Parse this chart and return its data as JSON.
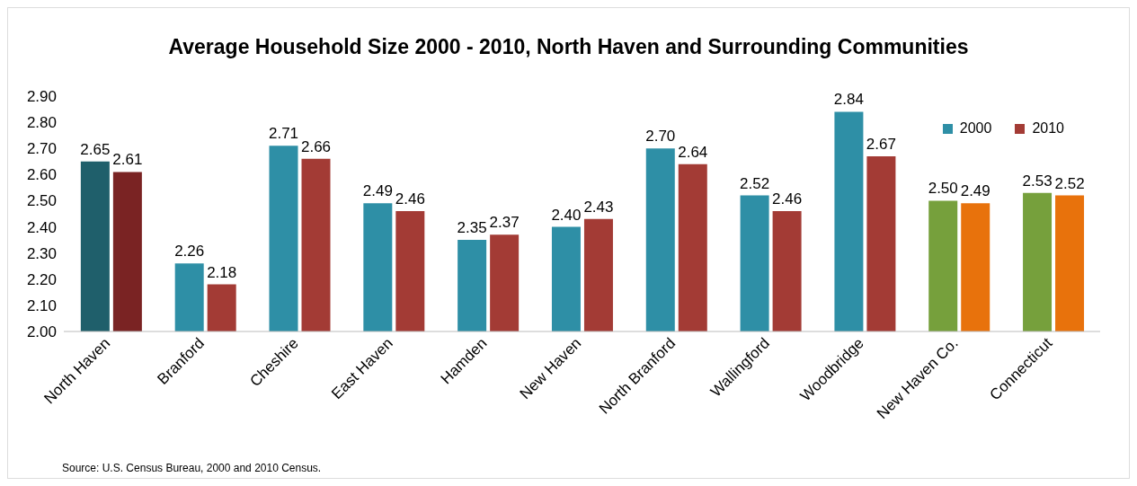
{
  "chart_data": {
    "type": "bar",
    "title": "Average Household Size 2000 - 2010, North Haven and Surrounding Communities",
    "categories": [
      "North Haven",
      "Branford",
      "Cheshire",
      "East Haven",
      "Hamden",
      "New Haven",
      "North Branford",
      "Wallingford",
      "Woodbridge",
      "New Haven Co.",
      "Connecticut"
    ],
    "series": [
      {
        "name": "2000",
        "color": "#2e8fa6",
        "colors": [
          "#1f5f6b",
          "#2e8fa6",
          "#2e8fa6",
          "#2e8fa6",
          "#2e8fa6",
          "#2e8fa6",
          "#2e8fa6",
          "#2e8fa6",
          "#2e8fa6",
          "#76a03c",
          "#76a03c"
        ],
        "values": [
          2.65,
          2.26,
          2.71,
          2.49,
          2.35,
          2.4,
          2.7,
          2.52,
          2.84,
          2.5,
          2.53
        ],
        "value_labels": [
          "2.65",
          "2.26",
          "2.71",
          "2.49",
          "2.35",
          "2.40",
          "2.70",
          "2.52",
          "2.84",
          "2.50",
          "2.53"
        ]
      },
      {
        "name": "2010",
        "color": "#a33b35",
        "colors": [
          "#7a2323",
          "#a33b35",
          "#a33b35",
          "#a33b35",
          "#a33b35",
          "#a33b35",
          "#a33b35",
          "#a33b35",
          "#a33b35",
          "#e8720c",
          "#e8720c"
        ],
        "values": [
          2.61,
          2.18,
          2.66,
          2.46,
          2.37,
          2.43,
          2.64,
          2.46,
          2.67,
          2.49,
          2.52
        ],
        "value_labels": [
          "2.61",
          "2.18",
          "2.66",
          "2.46",
          "2.37",
          "2.43",
          "2.64",
          "2.46",
          "2.67",
          "2.49",
          "2.52"
        ]
      }
    ],
    "ylim": [
      2.0,
      2.9
    ],
    "yticks": [
      {
        "value": 2.0,
        "label": "2.00"
      },
      {
        "value": 2.1,
        "label": "2.10"
      },
      {
        "value": 2.2,
        "label": "2.20"
      },
      {
        "value": 2.3,
        "label": "2.30"
      },
      {
        "value": 2.4,
        "label": "2.40"
      },
      {
        "value": 2.5,
        "label": "2.50"
      },
      {
        "value": 2.6,
        "label": "2.60"
      },
      {
        "value": 2.7,
        "label": "2.70"
      },
      {
        "value": 2.8,
        "label": "2.80"
      },
      {
        "value": 2.9,
        "label": "2.90"
      }
    ],
    "grid": false,
    "legend": "top right",
    "annotations": [
      "Source: U.S. Census Bureau, 2000 and 2010 Census."
    ]
  }
}
